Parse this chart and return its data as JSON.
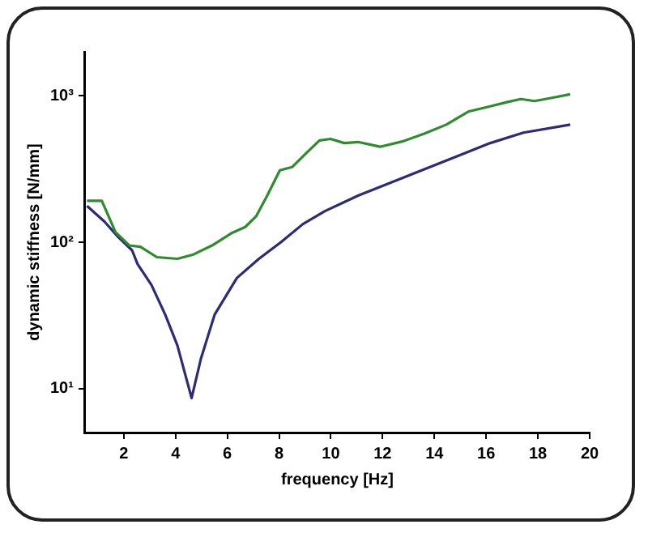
{
  "chart_data": {
    "type": "line",
    "xlabel": "frequency [Hz]",
    "ylabel": "dynamic stiffness [N/mm]",
    "log": "y",
    "grid": false,
    "legend": false,
    "marker": "none",
    "line_style": "solid",
    "xlim": [
      0.5,
      20
    ],
    "xticks": [
      2,
      4,
      6,
      8,
      10,
      12,
      14,
      16,
      18,
      20
    ],
    "ylim": [
      5,
      2000
    ],
    "yticks": [
      {
        "value": 10,
        "label": "10¹"
      },
      {
        "value": 100,
        "label": "10²"
      },
      {
        "value": 1000,
        "label": "10³"
      }
    ],
    "series": [
      {
        "color": "#2e8b2e",
        "x": [
          0.58,
          1.15,
          1.68,
          2.21,
          2.64,
          3.28,
          4.07,
          4.66,
          5.41,
          6.15,
          6.69,
          7.11,
          7.54,
          8.03,
          8.5,
          9.03,
          9.56,
          9.99,
          10.52,
          11.05,
          11.9,
          12.76,
          13.61,
          14.46,
          15.31,
          16.16,
          16.8,
          17.34,
          17.87,
          18.5,
          19.25
        ],
        "values": [
          192,
          192,
          117,
          95,
          93,
          79,
          77,
          82,
          95,
          115,
          127,
          150,
          208,
          310,
          326,
          403,
          496,
          508,
          476,
          484,
          449,
          488,
          552,
          636,
          781,
          848,
          906,
          952,
          922,
          967,
          1025
        ]
      },
      {
        "color": "#2b2b7a",
        "x": [
          0.58,
          1.26,
          1.79,
          2.32,
          2.53,
          3.07,
          3.6,
          4.07,
          4.62,
          4.98,
          5.51,
          6.37,
          7.22,
          8.07,
          8.92,
          9.77,
          11.05,
          12.33,
          13.61,
          14.89,
          16.16,
          17.44,
          19.25
        ],
        "values": [
          177,
          138,
          108,
          88,
          71,
          51,
          32,
          19.7,
          8.6,
          16,
          32,
          57,
          77,
          100,
          133,
          163,
          208,
          256,
          315,
          387,
          476,
          561,
          636
        ]
      }
    ]
  }
}
